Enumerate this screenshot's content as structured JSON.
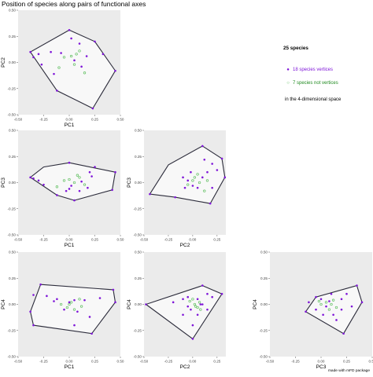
{
  "title": "Position of species along pairs of functional axes",
  "legend": {
    "title": "25 species",
    "vertices": "18 species vertices",
    "not_vertices": "7 species not vertices",
    "note": "in the 4-dimensional space"
  },
  "credit": "made with mFD package",
  "colors": {
    "vertex": "#7f16d8",
    "nonvertex": "#5fbf5f",
    "hull": "#2b2b3a",
    "panel": "#ebebeb",
    "hull_fill": "#f8f8f8"
  },
  "chart_data": [
    {
      "type": "scatter",
      "xlabel": "PC1",
      "ylabel": "PC2",
      "xlim": [
        -0.5,
        0.5
      ],
      "ylim": [
        -0.5,
        0.5
      ],
      "xticks": [
        "-0.50",
        "-0.25",
        "0.00",
        "0.25",
        "0.50"
      ],
      "yticks": [
        "-0.50",
        "-0.25",
        "0.00",
        "0.25",
        "0.50"
      ],
      "vertices": [
        [
          0.0,
          0.31
        ],
        [
          0.25,
          0.2
        ],
        [
          0.33,
          0.08
        ],
        [
          0.45,
          -0.08
        ],
        [
          0.23,
          -0.44
        ],
        [
          -0.12,
          -0.27
        ],
        [
          -0.3,
          0.08
        ],
        [
          -0.38,
          0.1
        ],
        [
          -0.35,
          0.05
        ],
        [
          -0.27,
          -0.02
        ],
        [
          -0.15,
          -0.11
        ],
        [
          0.02,
          0.23
        ],
        [
          0.1,
          0.18
        ],
        [
          0.17,
          0.06
        ],
        [
          -0.08,
          0.09
        ],
        [
          -0.18,
          0.1
        ],
        [
          0.12,
          -0.04
        ],
        [
          0.05,
          0.02
        ]
      ],
      "non_vertices": [
        [
          -0.05,
          0.05
        ],
        [
          0.1,
          0.11
        ],
        [
          0.05,
          -0.02
        ],
        [
          0.02,
          0.06
        ],
        [
          0.15,
          -0.1
        ],
        [
          -0.1,
          -0.05
        ],
        [
          0.07,
          0.08
        ]
      ],
      "hull": [
        [
          0.0,
          0.31
        ],
        [
          0.25,
          0.2
        ],
        [
          0.45,
          -0.08
        ],
        [
          0.23,
          -0.44
        ],
        [
          -0.12,
          -0.27
        ],
        [
          -0.38,
          0.1
        ]
      ]
    },
    {
      "type": "scatter",
      "xlabel": "PC1",
      "ylabel": "PC3",
      "xlim": [
        -0.5,
        0.5
      ],
      "ylim": [
        -0.5,
        0.5
      ],
      "xticks": [
        "-0.50",
        "-0.25",
        "0.00",
        "0.25",
        "0.50"
      ],
      "yticks": [
        "-0.50",
        "-0.25",
        "0.00",
        "0.25",
        "0.50"
      ],
      "vertices": [
        [
          0.0,
          0.19
        ],
        [
          0.25,
          0.15
        ],
        [
          0.45,
          0.1
        ],
        [
          0.42,
          -0.07
        ],
        [
          0.05,
          -0.17
        ],
        [
          -0.12,
          -0.12
        ],
        [
          -0.38,
          0.05
        ],
        [
          -0.35,
          0.04
        ],
        [
          -0.3,
          0.02
        ],
        [
          -0.25,
          -0.02
        ],
        [
          0.2,
          0.1
        ],
        [
          0.22,
          0.06
        ],
        [
          0.12,
          0.01
        ],
        [
          0.02,
          -0.03
        ],
        [
          -0.03,
          -0.08
        ],
        [
          0.1,
          -0.08
        ],
        [
          0.0,
          -0.06
        ],
        [
          0.18,
          -0.05
        ]
      ],
      "non_vertices": [
        [
          0.1,
          0.05
        ],
        [
          0.05,
          0.0
        ],
        [
          -0.05,
          0.02
        ],
        [
          0.15,
          -0.02
        ],
        [
          -0.12,
          -0.04
        ],
        [
          0.08,
          0.07
        ],
        [
          0.0,
          0.03
        ]
      ],
      "hull": [
        [
          0.0,
          0.19
        ],
        [
          0.45,
          0.1
        ],
        [
          0.42,
          -0.07
        ],
        [
          0.05,
          -0.17
        ],
        [
          -0.12,
          -0.12
        ],
        [
          -0.38,
          0.05
        ],
        [
          -0.25,
          0.15
        ]
      ]
    },
    {
      "type": "scatter",
      "xlabel": "PC2",
      "ylabel": "PC3",
      "xlim": [
        -0.5,
        0.34
      ],
      "ylim": [
        -0.5,
        0.5
      ],
      "xticks": [
        "-0.50",
        "-0.25",
        "0.00",
        "0.25"
      ],
      "yticks": [
        "-0.50",
        "-0.25",
        "0.00",
        "0.25",
        "0.50"
      ],
      "vertices": [
        [
          0.1,
          0.35
        ],
        [
          0.3,
          0.23
        ],
        [
          0.33,
          0.05
        ],
        [
          0.18,
          -0.2
        ],
        [
          -0.44,
          -0.11
        ],
        [
          -0.18,
          -0.14
        ],
        [
          -0.1,
          0.05
        ],
        [
          0.12,
          0.22
        ],
        [
          0.2,
          0.18
        ],
        [
          0.15,
          0.1
        ],
        [
          -0.05,
          0.02
        ],
        [
          0.0,
          -0.03
        ],
        [
          0.05,
          -0.05
        ],
        [
          0.2,
          -0.05
        ],
        [
          -0.02,
          0.1
        ],
        [
          0.1,
          0.05
        ],
        [
          0.25,
          0.12
        ],
        [
          -0.08,
          -0.05
        ]
      ],
      "non_vertices": [
        [
          0.02,
          0.05
        ],
        [
          0.07,
          0.0
        ],
        [
          0.15,
          0.02
        ],
        [
          -0.05,
          -0.02
        ],
        [
          0.05,
          0.08
        ],
        [
          0.12,
          -0.08
        ],
        [
          0.0,
          0.02
        ]
      ],
      "hull": [
        [
          0.1,
          0.35
        ],
        [
          0.3,
          0.23
        ],
        [
          0.33,
          0.05
        ],
        [
          0.18,
          -0.2
        ],
        [
          -0.18,
          -0.14
        ],
        [
          -0.44,
          -0.11
        ],
        [
          -0.25,
          0.17
        ]
      ]
    },
    {
      "type": "scatter",
      "xlabel": "PC1",
      "ylabel": "PC4",
      "xlim": [
        -0.5,
        0.5
      ],
      "ylim": [
        -0.5,
        0.5
      ],
      "xticks": [
        "-0.50",
        "-0.25",
        "0.00",
        "0.25",
        "0.50"
      ],
      "yticks": [
        "-0.50",
        "-0.25",
        "0.00",
        "0.25",
        "0.50"
      ],
      "vertices": [
        [
          -0.28,
          0.19
        ],
        [
          0.43,
          0.14
        ],
        [
          0.45,
          0.02
        ],
        [
          0.22,
          -0.28
        ],
        [
          -0.35,
          -0.2
        ],
        [
          -0.38,
          -0.07
        ],
        [
          -0.35,
          0.09
        ],
        [
          -0.22,
          0.08
        ],
        [
          -0.12,
          0.05
        ],
        [
          0.05,
          0.04
        ],
        [
          0.15,
          0.04
        ],
        [
          0.3,
          0.06
        ],
        [
          0.0,
          0.02
        ],
        [
          -0.05,
          -0.05
        ],
        [
          0.08,
          -0.07
        ],
        [
          0.2,
          -0.12
        ],
        [
          0.05,
          -0.2
        ],
        [
          -0.15,
          0.03
        ]
      ],
      "non_vertices": [
        [
          0.02,
          0.02
        ],
        [
          0.1,
          0.05
        ],
        [
          -0.02,
          -0.03
        ],
        [
          0.05,
          -0.05
        ],
        [
          -0.08,
          0.0
        ],
        [
          0.12,
          -0.02
        ],
        [
          0.0,
          0.0
        ]
      ],
      "hull": [
        [
          -0.28,
          0.19
        ],
        [
          0.43,
          0.14
        ],
        [
          0.45,
          0.02
        ],
        [
          0.22,
          -0.28
        ],
        [
          -0.35,
          -0.2
        ],
        [
          -0.38,
          -0.07
        ]
      ]
    },
    {
      "type": "scatter",
      "xlabel": "PC2",
      "ylabel": "PC4",
      "xlim": [
        -0.5,
        0.34
      ],
      "ylim": [
        -0.5,
        0.5
      ],
      "xticks": [
        "-0.50",
        "-0.25",
        "0.00",
        "0.25"
      ],
      "yticks": [
        "-0.50",
        "-0.25",
        "0.00",
        "0.25",
        "0.50"
      ],
      "vertices": [
        [
          0.1,
          0.18
        ],
        [
          0.3,
          0.1
        ],
        [
          -0.48,
          0.0
        ],
        [
          0.0,
          -0.33
        ],
        [
          0.15,
          0.1
        ],
        [
          0.2,
          0.07
        ],
        [
          0.05,
          0.05
        ],
        [
          -0.05,
          0.07
        ],
        [
          -0.1,
          0.05
        ],
        [
          -0.02,
          -0.05
        ],
        [
          0.05,
          -0.1
        ],
        [
          -0.1,
          -0.1
        ],
        [
          0.15,
          -0.05
        ],
        [
          -0.2,
          0.02
        ],
        [
          0.08,
          0.0
        ],
        [
          0.0,
          -0.2
        ],
        [
          -0.05,
          -0.02
        ],
        [
          0.1,
          0.0
        ]
      ],
      "non_vertices": [
        [
          0.02,
          0.0
        ],
        [
          0.07,
          0.02
        ],
        [
          0.05,
          -0.03
        ],
        [
          -0.03,
          0.03
        ],
        [
          0.0,
          0.05
        ],
        [
          0.08,
          -0.05
        ],
        [
          0.03,
          -0.02
        ]
      ],
      "hull": [
        [
          0.1,
          0.18
        ],
        [
          0.3,
          0.1
        ],
        [
          0.0,
          -0.33
        ],
        [
          -0.48,
          0.0
        ]
      ]
    },
    {
      "type": "scatter",
      "xlabel": "PC3",
      "ylabel": "PC4",
      "xlim": [
        -0.5,
        0.5
      ],
      "ylim": [
        -0.5,
        0.5
      ],
      "xticks": [
        "-0.50",
        "-0.25",
        "0.00",
        "0.25",
        "0.50"
      ],
      "yticks": [
        "-0.50",
        "-0.25",
        "0.00",
        "0.25",
        "0.50"
      ],
      "vertices": [
        [
          0.35,
          0.18
        ],
        [
          0.4,
          0.02
        ],
        [
          0.22,
          -0.28
        ],
        [
          -0.15,
          -0.07
        ],
        [
          -0.05,
          0.07
        ],
        [
          -0.12,
          0.02
        ],
        [
          0.1,
          0.1
        ],
        [
          0.2,
          0.05
        ],
        [
          0.05,
          -0.02
        ],
        [
          0.12,
          -0.1
        ],
        [
          0.0,
          0.05
        ],
        [
          -0.05,
          -0.05
        ],
        [
          0.2,
          -0.05
        ],
        [
          0.25,
          0.1
        ],
        [
          0.08,
          0.03
        ],
        [
          0.15,
          -0.15
        ],
        [
          0.02,
          -0.1
        ],
        [
          0.3,
          -0.02
        ]
      ],
      "non_vertices": [
        [
          0.05,
          0.02
        ],
        [
          0.1,
          0.0
        ],
        [
          0.0,
          0.0
        ],
        [
          0.08,
          -0.05
        ],
        [
          -0.02,
          0.03
        ],
        [
          0.12,
          0.04
        ],
        [
          0.15,
          -0.03
        ]
      ],
      "hull": [
        [
          0.35,
          0.18
        ],
        [
          0.4,
          0.02
        ],
        [
          0.22,
          -0.28
        ],
        [
          -0.15,
          -0.07
        ],
        [
          -0.05,
          0.07
        ]
      ]
    }
  ]
}
